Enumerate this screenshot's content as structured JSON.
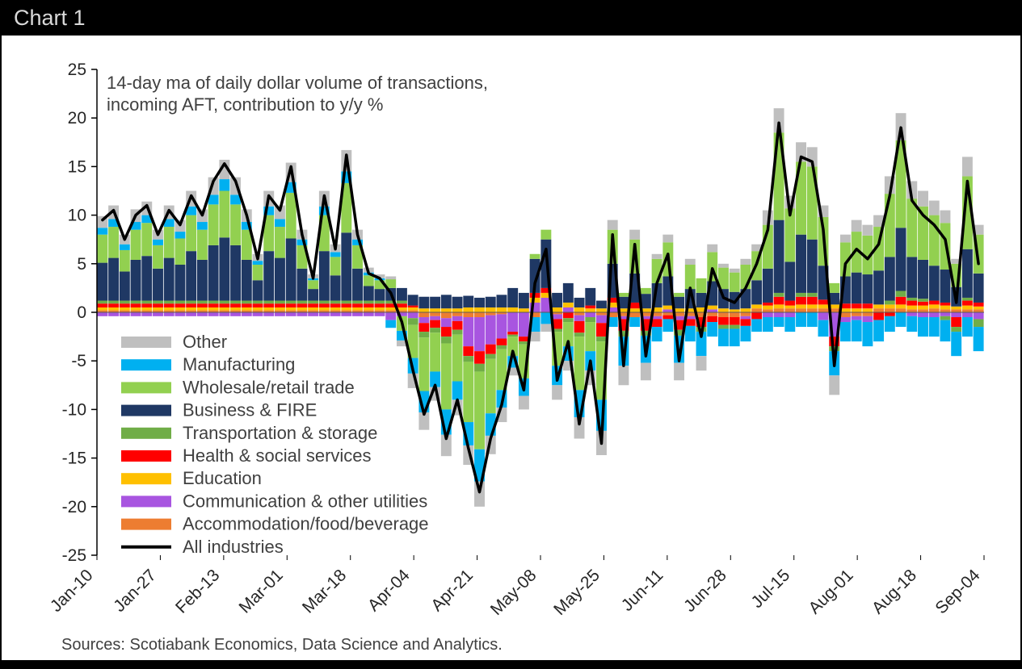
{
  "window": {
    "title": "Chart 1"
  },
  "footer": {
    "source": "Sources: Scotiabank Economics, Data Science and Analytics."
  },
  "chart_data": {
    "type": "stacked-bar-line",
    "annotation": [
      "14-day ma of daily dollar volume of transactions,",
      "incoming AFT, contribution to y/y %"
    ],
    "ylim": [
      -25,
      25
    ],
    "ytick_step": 5,
    "y_tick_labels": [
      25,
      20,
      15,
      10,
      5,
      0,
      -5,
      -10,
      -15,
      -20,
      -25
    ],
    "x_tick_labels": [
      "Jan-10",
      "Jan-27",
      "Feb-13",
      "Mar-01",
      "Mar-18",
      "Apr-04",
      "Apr-21",
      "May-08",
      "May-25",
      "Jun-11",
      "Jun-28",
      "Jul-15",
      "Aug-01",
      "Aug-18",
      "Sep-04"
    ],
    "grid": "zero-line-only",
    "legend_position": "inside-left",
    "legend": [
      {
        "label": "Other",
        "color": "#bfbfbf",
        "type": "box"
      },
      {
        "label": "Manufacturing",
        "color": "#00b0f0",
        "type": "box"
      },
      {
        "label": "Wholesale/retail trade",
        "color": "#92d050",
        "type": "box"
      },
      {
        "label": "Business & FIRE",
        "color": "#1f3864",
        "type": "box"
      },
      {
        "label": "Transportation & storage",
        "color": "#70ad47",
        "type": "box"
      },
      {
        "label": "Health & social services",
        "color": "#ff0000",
        "type": "box"
      },
      {
        "label": "Education",
        "color": "#ffc000",
        "type": "box"
      },
      {
        "label": "Communication & other utilities",
        "color": "#a855e0",
        "type": "box"
      },
      {
        "label": "Accommodation/food/beverage",
        "color": "#ed7d31",
        "type": "box"
      },
      {
        "label": "All industries",
        "color": "#000000",
        "type": "line"
      }
    ],
    "series": [
      {
        "name": "Accommodation/food/beverage",
        "color": "#ed7d31",
        "values": [
          0.2,
          0.2,
          0.2,
          0.2,
          0.2,
          0.2,
          0.2,
          0.2,
          0.2,
          0.2,
          0.2,
          0.2,
          0.2,
          0.2,
          0.2,
          0.2,
          0.2,
          0.2,
          0.2,
          0.2,
          0.2,
          0.2,
          0.2,
          0.2,
          0.2,
          0.2,
          0.2,
          0.2,
          0.2,
          -0.5,
          -0.4,
          -0.6,
          -0.4,
          -0.5,
          -0.5,
          -0.3,
          -0.2,
          0,
          0,
          -0.5,
          0,
          -0.2,
          0,
          -0.3,
          0,
          -0.3,
          -0.5,
          -0.4,
          -0.5,
          -0.4,
          -0.4,
          -0.3,
          -0.4,
          -0.4,
          -0.5,
          -0.4,
          -0.5,
          -0.5,
          -0.4,
          0.4,
          0.3,
          0.4,
          0.4,
          0.4,
          0.4,
          0.4,
          0.4,
          -0.5,
          -0.4,
          -0.4,
          0.4,
          0.4,
          0.4,
          0.3,
          0.3,
          0.4,
          0.3,
          0.3,
          0.3,
          0.3
        ]
      },
      {
        "name": "Communication & other utilities",
        "color": "#a855e0",
        "values": [
          -0.4,
          -0.4,
          -0.4,
          -0.4,
          -0.4,
          -0.4,
          -0.4,
          -0.4,
          -0.4,
          -0.4,
          -0.4,
          -0.4,
          -0.4,
          -0.4,
          -0.4,
          -0.4,
          -0.4,
          -0.4,
          -0.4,
          -0.4,
          -0.4,
          -0.4,
          -0.4,
          -0.4,
          -0.4,
          -0.4,
          -0.8,
          -0.4,
          -0.6,
          -0.6,
          -0.4,
          -0.9,
          -0.5,
          -3.0,
          -3.5,
          -3.0,
          -2.5,
          -2.0,
          -2.5,
          1.0,
          1.5,
          -0.5,
          0.5,
          -0.6,
          -0.5,
          -0.8,
          0.5,
          -0.3,
          0,
          -0.3,
          -0.3,
          0.3,
          -0.4,
          -0.3,
          0,
          0.3,
          0,
          0,
          -0.3,
          0,
          -0.5,
          -0.5,
          -0.5,
          0,
          0,
          -0.8,
          -2.5,
          -0.5,
          -0.4,
          -0.6,
          0,
          0,
          0,
          -0.4,
          -0.5,
          -0.5,
          -0.4,
          -0.5,
          -0.5,
          -0.7
        ]
      },
      {
        "name": "Education",
        "color": "#ffc000",
        "values": [
          0.3,
          0.3,
          0.3,
          0.3,
          0.3,
          0.3,
          0.3,
          0.3,
          0.3,
          0.3,
          0.3,
          0.3,
          0.3,
          0.3,
          0.3,
          0.3,
          0.3,
          0.3,
          0.3,
          0.3,
          0.3,
          0.3,
          0.3,
          0.3,
          0.3,
          0.3,
          0.3,
          0.3,
          0.3,
          0.4,
          0.4,
          0.4,
          0.4,
          0.5,
          0.5,
          0.5,
          0.5,
          0.5,
          0.4,
          0.5,
          0.5,
          0.5,
          0.5,
          0.5,
          0.4,
          0.4,
          0.5,
          0.4,
          0.4,
          0.4,
          0.5,
          0.4,
          0.4,
          0.4,
          0.5,
          0.4,
          0.4,
          0.3,
          0.4,
          0.4,
          0.4,
          0.4,
          0.3,
          0.4,
          0.4,
          0.4,
          0.4,
          0.4,
          0.4,
          0.4,
          0.4,
          0.4,
          0.4,
          0.4,
          0.4,
          0.4,
          0.4,
          0.3,
          0.4,
          0.3
        ]
      },
      {
        "name": "Health & social services",
        "color": "#ff0000",
        "values": [
          0.4,
          0.4,
          0.4,
          0.4,
          0.4,
          0.4,
          0.4,
          0.4,
          0.4,
          0.4,
          0.4,
          0.4,
          0.4,
          0.4,
          0.4,
          0.4,
          0.4,
          0.4,
          0.4,
          0.4,
          0.4,
          0.4,
          0.4,
          0.4,
          0.4,
          0.4,
          0.4,
          0.4,
          0.2,
          -0.9,
          -0.8,
          -1.0,
          -0.9,
          -1.0,
          -1.3,
          -1.0,
          -0.7,
          -0.3,
          -0.5,
          0.5,
          0.5,
          -1.0,
          -0.6,
          -1.2,
          0.3,
          -1.4,
          0.5,
          -1.2,
          0.6,
          -1.2,
          -0.8,
          -0.4,
          -1.0,
          -0.7,
          -1.0,
          -0.6,
          -0.8,
          -0.8,
          -0.7,
          -0.7,
          0.3,
          0.8,
          0.5,
          0.8,
          0.8,
          0.5,
          -1.0,
          0.5,
          0.5,
          0.5,
          -0.8,
          -0.4,
          0.8,
          0.5,
          0.4,
          0.4,
          0.3,
          -1.0,
          0.5,
          0.4
        ]
      },
      {
        "name": "Transportation & storage",
        "color": "#70ad47",
        "values": [
          0.3,
          0.3,
          0.3,
          0.3,
          0.3,
          0.3,
          0.3,
          0.3,
          0.3,
          0.3,
          0.3,
          0.3,
          0.3,
          0.3,
          0.3,
          0.3,
          0.3,
          0.3,
          0.3,
          0.3,
          0.3,
          0.3,
          0.3,
          0.3,
          0.3,
          0.3,
          0.3,
          0.3,
          -0.7,
          -0.6,
          -0.5,
          -0.7,
          -0.5,
          -0.6,
          -0.8,
          -0.5,
          -0.4,
          -0.2,
          -0.3,
          0,
          0,
          -0.3,
          -0.4,
          -0.4,
          -0.5,
          -0.5,
          0,
          -0.6,
          0,
          -0.5,
          0,
          0,
          -0.6,
          0,
          -0.5,
          0,
          -0.4,
          -0.4,
          0,
          0,
          0,
          0.4,
          0,
          0.4,
          0.4,
          0,
          -0.5,
          0,
          0,
          0,
          0,
          0.4,
          0.6,
          0.3,
          0.3,
          0,
          -0.4,
          -0.5,
          0.3,
          -0.8
        ]
      },
      {
        "name": "Business & FIRE",
        "color": "#1f3864",
        "values": [
          3.9,
          4.4,
          3.0,
          4.2,
          4.6,
          3.3,
          4.4,
          3.7,
          5.1,
          4.2,
          5.7,
          6.5,
          5.7,
          4.2,
          2.1,
          5.1,
          4.4,
          6.4,
          3.3,
          1.2,
          5.1,
          2.6,
          7.0,
          3.3,
          1.5,
          1.2,
          1.3,
          1.3,
          1.1,
          1.2,
          1.2,
          1.4,
          1.2,
          1.2,
          1.0,
          1.1,
          1.3,
          2.0,
          1.6,
          3.5,
          5.0,
          1.5,
          2.0,
          1.0,
          1.8,
          0.8,
          3.5,
          1.2,
          3.0,
          1.5,
          2.5,
          3.0,
          1.2,
          2.0,
          1.5,
          2.5,
          2.0,
          1.8,
          2.0,
          2.5,
          3.5,
          7.5,
          4.0,
          6.0,
          5.5,
          3.5,
          1.2,
          2.8,
          3.2,
          3.0,
          3.5,
          4.5,
          6.5,
          4.2,
          4.0,
          3.6,
          3.4,
          2.0,
          5.0,
          3.0
        ]
      },
      {
        "name": "Wholesale/retail trade",
        "color": "#92d050",
        "values": [
          2.9,
          3.2,
          2.2,
          3.1,
          3.4,
          2.4,
          3.2,
          2.7,
          3.7,
          3.1,
          4.2,
          4.8,
          4.2,
          3.1,
          1.6,
          3.7,
          3.2,
          4.7,
          2.4,
          0.9,
          3.7,
          1.9,
          5.1,
          2.4,
          1.1,
          0.9,
          0.9,
          -1.5,
          -3.4,
          -5.5,
          -4.0,
          -6.8,
          -4.8,
          -6.2,
          -8.0,
          -5.6,
          -4.2,
          -2.0,
          -3.5,
          0.5,
          1.0,
          -3.5,
          -2.5,
          -5.5,
          -3.0,
          -6.0,
          3.5,
          0.4,
          3.5,
          0.6,
          2.5,
          3.5,
          0.4,
          2.5,
          1.5,
          3.0,
          2.2,
          2.0,
          2.5,
          3.0,
          4.5,
          9.0,
          5.5,
          7.5,
          7.5,
          5.0,
          1.0,
          3.5,
          4.2,
          4.0,
          4.5,
          6.5,
          9.0,
          6.0,
          5.5,
          5.2,
          4.8,
          2.4,
          7.5,
          4.0
        ]
      },
      {
        "name": "Manufacturing",
        "color": "#00b0f0",
        "values": [
          0.7,
          0.8,
          0.6,
          0.8,
          0.8,
          0.6,
          0.8,
          0.7,
          0.9,
          0.8,
          1.0,
          1.2,
          1.0,
          0.8,
          0.4,
          0.9,
          0.8,
          1.1,
          0.6,
          0.2,
          0.9,
          0.5,
          1.2,
          0.6,
          0.3,
          0.2,
          -0.8,
          -1.0,
          -1.6,
          -2.2,
          -1.6,
          -2.6,
          -1.9,
          -2.4,
          -3.3,
          -2.3,
          -1.8,
          -1.2,
          -1.8,
          -1.5,
          -1.2,
          -2.0,
          -1.5,
          -2.8,
          -2.0,
          -3.2,
          -1.0,
          -3.0,
          -1.0,
          -2.8,
          -1.5,
          -1.3,
          -2.8,
          -1.6,
          -2.5,
          -1.5,
          -1.8,
          -1.8,
          -1.6,
          -1.3,
          -1.5,
          -1.0,
          -1.5,
          -1.5,
          -1.5,
          -1.7,
          -2.5,
          -2.0,
          -2.2,
          -2.5,
          -2.2,
          -1.6,
          -1.5,
          -1.6,
          -2.0,
          -2.0,
          -2.2,
          -2.5,
          -2.0,
          -2.5
        ]
      },
      {
        "name": "Other",
        "color": "#bfbfbf",
        "values": [
          1.2,
          1.4,
          1.0,
          1.3,
          1.4,
          1.0,
          1.4,
          1.2,
          1.6,
          1.3,
          1.8,
          2.0,
          1.8,
          1.3,
          0.7,
          1.6,
          1.4,
          2.0,
          1.0,
          0.4,
          1.6,
          0.8,
          2.2,
          1.0,
          0.5,
          0.4,
          0.3,
          -0.6,
          -1.5,
          -1.8,
          -1.4,
          -2.2,
          -1.6,
          -2.0,
          -2.6,
          -1.9,
          -1.5,
          -0.8,
          -1.4,
          -1.0,
          -0.8,
          -1.5,
          -1.0,
          -2.2,
          -1.5,
          -2.5,
          1.0,
          -2.0,
          1.0,
          -1.8,
          0.5,
          0.8,
          -1.8,
          0.6,
          -1.5,
          0.8,
          0.4,
          0.4,
          0.6,
          0.7,
          1.5,
          2.5,
          1.3,
          2.0,
          2.0,
          1.2,
          -2.0,
          0.8,
          1.2,
          1.1,
          1.2,
          1.8,
          2.8,
          1.8,
          1.6,
          1.5,
          1.3,
          0.5,
          2.0,
          1.0
        ]
      }
    ],
    "line": {
      "name": "All industries",
      "color": "#000000",
      "values": [
        9.5,
        10.5,
        7.5,
        10.0,
        11.0,
        8.0,
        10.5,
        9.0,
        12.0,
        10.0,
        13.5,
        15.3,
        13.5,
        10.0,
        5.5,
        12.0,
        10.5,
        15.0,
        8.0,
        3.5,
        12.0,
        6.5,
        16.2,
        8.0,
        4.0,
        3.5,
        2.0,
        -1.0,
        -6.0,
        -10.5,
        -7.5,
        -13.0,
        -9.0,
        -14.0,
        -18.5,
        -13.0,
        -9.5,
        -4.0,
        -8.0,
        3.0,
        6.5,
        -7.0,
        -3.0,
        -11.5,
        -5.0,
        -13.5,
        8.0,
        -5.5,
        7.0,
        -4.5,
        3.0,
        6.0,
        -5.0,
        2.5,
        -2.5,
        4.5,
        1.5,
        1.0,
        2.5,
        5.0,
        8.5,
        19.5,
        10.0,
        16.0,
        15.5,
        8.5,
        -5.5,
        5.0,
        6.5,
        5.5,
        7.0,
        12.0,
        19.0,
        11.5,
        10.0,
        9.0,
        7.5,
        1.0,
        13.5,
        5.0
      ]
    }
  }
}
